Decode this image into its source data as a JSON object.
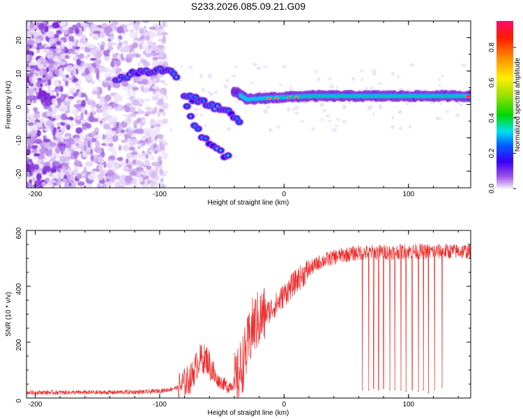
{
  "title": "S233.2026.085.09.21.G09",
  "colors": {
    "snr_line": "#ee2a2a",
    "frame": "#000000",
    "background": "#ffffff"
  },
  "chart_data": [
    {
      "type": "heatmap",
      "name": "spectrogram",
      "xlabel": "Height of straight line (km)",
      "ylabel": "Frequency (Hz)",
      "xlim": [
        -207,
        150
      ],
      "ylim": [
        -25,
        25
      ],
      "xticks": [
        -200,
        -100,
        0,
        100
      ],
      "yticks": [
        20,
        10,
        0,
        -10,
        -20
      ],
      "colorbar": {
        "label": "Normalized spectral amplitude",
        "range": [
          0,
          0.95
        ],
        "ticks": [
          0.0,
          0.2,
          0.4,
          0.6,
          0.8
        ]
      },
      "features": [
        {
          "description": "diffuse scattered noise",
          "x": [
            -207,
            -95
          ],
          "y": [
            -25,
            25
          ]
        },
        {
          "description": "signal track",
          "points": [
            [
              -135,
              7
            ],
            [
              -120,
              9.5
            ],
            [
              -105,
              10
            ],
            [
              -95,
              10.5
            ],
            [
              -85,
              8
            ]
          ]
        },
        {
          "description": "descending branch A",
          "points": [
            [
              -80,
              2.5
            ],
            [
              -65,
              1
            ],
            [
              -55,
              -1
            ],
            [
              -45,
              -2.5
            ],
            [
              -35,
              -5
            ]
          ]
        },
        {
          "description": "descending branch B",
          "points": [
            [
              -78,
              -1
            ],
            [
              -72,
              -6
            ],
            [
              -65,
              -10
            ],
            [
              -55,
              -13
            ],
            [
              -45,
              -16
            ]
          ]
        },
        {
          "description": "steady carrier",
          "points": [
            [
              -40,
              4
            ],
            [
              -30,
              1.5
            ],
            [
              -10,
              2.0
            ],
            [
              20,
              2.5
            ],
            [
              60,
              2.5
            ],
            [
              100,
              2.5
            ],
            [
              150,
              2.5
            ]
          ]
        }
      ]
    },
    {
      "type": "line",
      "name": "snr",
      "xlabel": "Height of straight line (km)",
      "ylabel": "SNR (10 * v/v)",
      "xlim": [
        -207,
        150
      ],
      "ylim": [
        0,
        600
      ],
      "xticks": [
        -200,
        -100,
        0,
        100
      ],
      "yticks": [
        600,
        400,
        200,
        0
      ],
      "envelope": [
        [
          -207,
          20
        ],
        [
          -150,
          20
        ],
        [
          -110,
          22
        ],
        [
          -95,
          28
        ],
        [
          -85,
          38
        ],
        [
          -75,
          70
        ],
        [
          -68,
          140
        ],
        [
          -62,
          140
        ],
        [
          -55,
          70
        ],
        [
          -45,
          40
        ],
        [
          -38,
          60
        ],
        [
          -30,
          170
        ],
        [
          -25,
          260
        ],
        [
          -15,
          300
        ],
        [
          -5,
          340
        ],
        [
          0,
          370
        ],
        [
          10,
          420
        ],
        [
          20,
          460
        ],
        [
          30,
          490
        ],
        [
          45,
          510
        ],
        [
          60,
          520
        ],
        [
          100,
          525
        ],
        [
          150,
          525
        ]
      ],
      "dropouts": [
        {
          "x": 63,
          "y": 30
        },
        {
          "x": 68,
          "y": 30
        },
        {
          "x": 72,
          "y": 35
        },
        {
          "x": 76,
          "y": 30
        },
        {
          "x": 80,
          "y": 35
        },
        {
          "x": 85,
          "y": 30
        },
        {
          "x": 89,
          "y": 30
        },
        {
          "x": 94,
          "y": 30
        },
        {
          "x": 98,
          "y": 25
        },
        {
          "x": 103,
          "y": 30
        },
        {
          "x": 108,
          "y": 25
        },
        {
          "x": 112,
          "y": 30
        },
        {
          "x": 116,
          "y": 20
        },
        {
          "x": 121,
          "y": 30
        },
        {
          "x": 127,
          "y": 40
        }
      ]
    }
  ]
}
